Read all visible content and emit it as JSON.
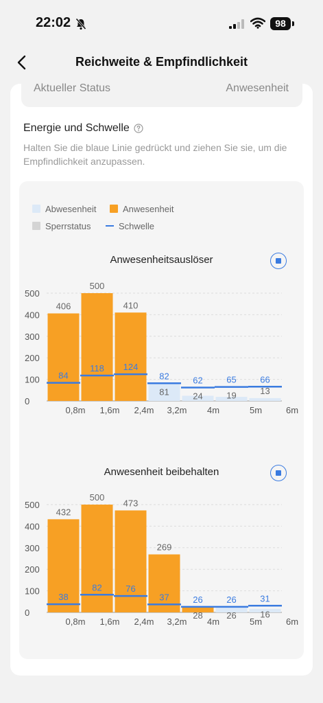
{
  "status_bar": {
    "time": "22:02",
    "battery": "98"
  },
  "nav": {
    "title": "Reichweite & Empfindlichkeit"
  },
  "status_row": {
    "label": "Aktueller Status",
    "value": "Anwesenheit"
  },
  "section": {
    "title": "Energie und Schwelle",
    "description": "Halten Sie die blaue Linie gedrückt und ziehen Sie sie, um die Empfindlichkeit anzupassen."
  },
  "legend": {
    "absence": "Abwesenheit",
    "presence": "Anwesenheit",
    "lock": "Sperrstatus",
    "threshold": "Schwelle"
  },
  "colors": {
    "presence": "#f7a024",
    "absence": "#dce9f7",
    "lock": "#d4d4d4",
    "threshold": "#3a7be0"
  },
  "chart_data": [
    {
      "type": "bar",
      "title": "Anwesenheitsauslöser",
      "x_ticks": [
        "0,8m",
        "1,6m",
        "2,4m",
        "3,2m",
        "4m",
        "5m",
        "6m"
      ],
      "y_ticks": [
        "500",
        "400",
        "300",
        "200",
        "100",
        "0"
      ],
      "ylim": [
        0,
        500
      ],
      "energy": [
        406,
        500,
        410,
        81,
        24,
        19,
        13
      ],
      "bar_state": [
        "presence",
        "presence",
        "presence",
        "absence",
        "absence",
        "absence",
        "absence"
      ],
      "threshold": [
        84,
        118,
        124,
        82,
        62,
        65,
        66
      ],
      "grid": true
    },
    {
      "type": "bar",
      "title": "Anwesenheit beibehalten",
      "x_ticks": [
        "0,8m",
        "1,6m",
        "2,4m",
        "3,2m",
        "4m",
        "5m",
        "6m"
      ],
      "y_ticks": [
        "500",
        "400",
        "300",
        "200",
        "100",
        "0"
      ],
      "ylim": [
        0,
        500
      ],
      "energy": [
        432,
        500,
        473,
        269,
        28,
        26,
        16
      ],
      "bar_state": [
        "presence",
        "presence",
        "presence",
        "presence",
        "presence",
        "absence",
        "absence"
      ],
      "threshold": [
        38,
        82,
        76,
        37,
        26,
        26,
        31
      ],
      "grid": true
    }
  ]
}
